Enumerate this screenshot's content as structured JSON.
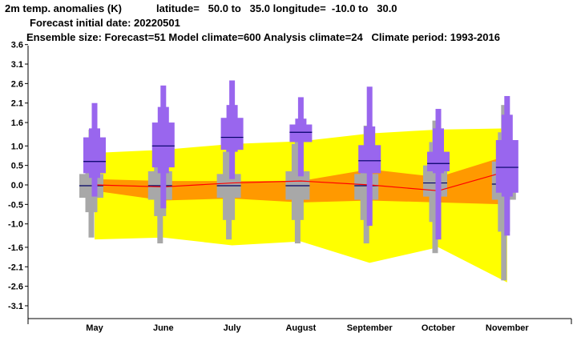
{
  "header": {
    "line1_var": "2m temp. anomalies (K)",
    "line1_lat": "latitude=   50.0 to   35.0 longitude=  -10.0 to   30.0",
    "line2": "Forecast initial date: 20220501",
    "line3": "Ensemble size: Forecast=51 Model climate=600 Analysis climate=24   Climate period: 1993-2016"
  },
  "colors": {
    "forecast": "#9966ee",
    "model_climate": "#a8a8a8",
    "outer_band": "#ffff00",
    "inner_band": "#ff9900",
    "analysis_line": "#ff0000",
    "median": "#000066"
  },
  "chart_data": {
    "type": "box",
    "categories": [
      "May",
      "June",
      "July",
      "August",
      "September",
      "October",
      "November"
    ],
    "yticks": [
      "3.6",
      "3.1",
      "2.6",
      "2.1",
      "1.6",
      "1.0",
      "0.5",
      "0.0",
      "-0.5",
      "-1.0",
      "-1.6",
      "-2.1",
      "-2.6",
      "-3.1"
    ],
    "ylim": [
      -3.5,
      3.7
    ],
    "forecast": [
      {
        "min": -0.3,
        "p10": 0.18,
        "p25": 0.3,
        "median": 0.6,
        "p75": 1.22,
        "p90": 1.45,
        "max": 2.1
      },
      {
        "min": -0.6,
        "p10": 0.3,
        "p25": 0.45,
        "median": 1.0,
        "p75": 1.6,
        "p90": 2.0,
        "max": 2.55
      },
      {
        "min": 0.15,
        "p10": 0.85,
        "p25": 0.9,
        "median": 1.22,
        "p75": 1.72,
        "p90": 2.05,
        "max": 2.68
      },
      {
        "min": 0.22,
        "p10": 1.1,
        "p25": 1.1,
        "median": 1.35,
        "p75": 1.55,
        "p90": 1.7,
        "max": 2.25
      },
      {
        "min": -1.05,
        "p10": 0.3,
        "p25": 0.3,
        "median": 0.62,
        "p75": 1.02,
        "p90": 1.5,
        "max": 2.52
      },
      {
        "min": -1.4,
        "p10": 0.3,
        "p25": 0.35,
        "median": 0.55,
        "p75": 0.85,
        "p90": 1.45,
        "max": 1.95
      },
      {
        "min": -1.3,
        "p10": -0.3,
        "p25": -0.2,
        "median": 0.45,
        "p75": 1.15,
        "p90": 1.8,
        "max": 2.28
      }
    ],
    "model_climate": [
      {
        "min": -1.35,
        "p10": -0.7,
        "p25": -0.33,
        "median": -0.02,
        "p75": 0.28,
        "p90": 1.0,
        "max": 1.42
      },
      {
        "min": -1.5,
        "p10": -0.8,
        "p25": -0.38,
        "median": -0.02,
        "p75": 0.35,
        "p90": 0.9,
        "max": 1.2
      },
      {
        "min": -1.4,
        "p10": -0.9,
        "p25": -0.33,
        "median": -0.02,
        "p75": 0.28,
        "p90": 0.85,
        "max": 1.25
      },
      {
        "min": -1.5,
        "p10": -0.9,
        "p25": -0.38,
        "median": -0.02,
        "p75": 0.35,
        "p90": 1.05,
        "max": 1.42
      },
      {
        "min": -1.5,
        "p10": -0.9,
        "p25": -0.38,
        "median": -0.02,
        "p75": 0.28,
        "p90": 1.0,
        "max": 1.52
      },
      {
        "min": -1.75,
        "p10": -0.95,
        "p25": -0.3,
        "median": 0.05,
        "p75": 0.5,
        "p90": 1.1,
        "max": 1.65
      },
      {
        "min": -2.45,
        "p10": -1.2,
        "p25": -0.38,
        "median": 0.02,
        "p75": 0.6,
        "p90": 1.35,
        "max": 2.05
      }
    ],
    "analysis_climate": {
      "outer_upper": [
        0.82,
        0.9,
        1.05,
        1.12,
        1.32,
        1.42,
        1.45
      ],
      "outer_lower": [
        -1.4,
        -1.35,
        -1.55,
        -1.45,
        -2.0,
        -1.6,
        -2.5
      ],
      "inner_upper": [
        0.15,
        0.1,
        0.1,
        0.1,
        0.4,
        0.2,
        0.75
      ],
      "inner_lower": [
        -0.15,
        -0.4,
        -0.35,
        -0.45,
        -0.4,
        -0.45,
        -0.5
      ],
      "line": [
        0.0,
        -0.05,
        0.05,
        0.1,
        0.0,
        -0.15,
        0.35
      ]
    }
  }
}
